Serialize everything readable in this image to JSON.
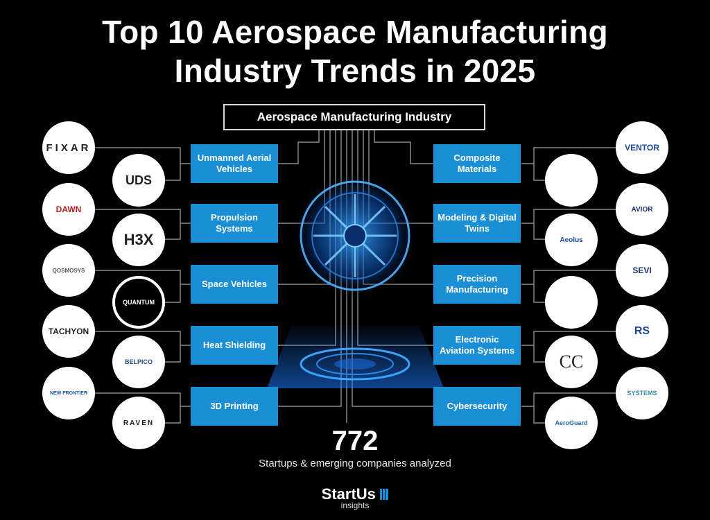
{
  "title_line1": "Top 10 Aerospace Manufacturing",
  "title_line2": "Industry Trends in 2025",
  "header": "Aerospace Manufacturing Industry",
  "trends_left": [
    "Unmanned Aerial Vehicles",
    "Propulsion Systems",
    "Space Vehicles",
    "Heat Shielding",
    "3D Printing"
  ],
  "trends_right": [
    "Composite Materials",
    "Modeling & Digital Twins",
    "Precision Manufacturing",
    "Electronic Aviation Systems",
    "Cybersecurity"
  ],
  "logos_left": [
    {
      "text": "FIXAR"
    },
    {
      "text": "UDS"
    },
    {
      "text": "DAWN"
    },
    {
      "text": "H3X"
    },
    {
      "text": "QOSMOSYS"
    },
    {
      "text": "QUANTUM"
    },
    {
      "text": "TACHYON"
    },
    {
      "text": "BELPICO"
    },
    {
      "text": "NEW FRONTIER"
    },
    {
      "text": "RAVEN"
    }
  ],
  "logos_right": [
    {
      "text": "VENTOR"
    },
    {
      "text": ""
    },
    {
      "text": "AVIOR"
    },
    {
      "text": "Aeolus"
    },
    {
      "text": "SEVI"
    },
    {
      "text": ""
    },
    {
      "text": "RS"
    },
    {
      "text": "CC"
    },
    {
      "text": "SYSTEMS"
    },
    {
      "text": "AeroGuard"
    }
  ],
  "stat_number": "772",
  "stat_caption": "Startups & emerging companies analyzed",
  "brand_name": "StartUs",
  "brand_sub": "insights",
  "colors": {
    "accent": "#1b8fd6",
    "background": "#000000",
    "text": "#ffffff"
  }
}
